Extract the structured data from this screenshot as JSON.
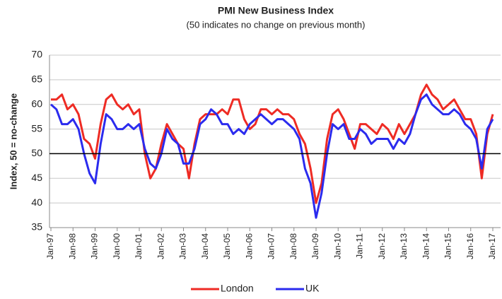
{
  "chart_data": {
    "type": "line",
    "title": "PMI New Business Index",
    "subtitle": "(50 indicates no change on previous month)",
    "y_label": "Index, 50 = no-change",
    "categories": [
      "Jan-97",
      null,
      null,
      null,
      "Jan-98",
      null,
      null,
      null,
      "Jan-99",
      null,
      null,
      null,
      "Jan-00",
      null,
      null,
      null,
      "Jan-01",
      null,
      null,
      null,
      "Jan-02",
      null,
      null,
      null,
      "Jan-03",
      null,
      null,
      null,
      "Jan-04",
      null,
      null,
      null,
      "Jan-05",
      null,
      null,
      null,
      "Jan-06",
      null,
      null,
      null,
      "Jan-07",
      null,
      null,
      null,
      "Jan-08",
      null,
      null,
      null,
      "Jan-09",
      null,
      null,
      null,
      "Jan-10",
      null,
      null,
      null,
      "Jan-11",
      null,
      null,
      null,
      "Jan-12",
      null,
      null,
      null,
      "Jan-13",
      null,
      null,
      null,
      "Jan-14",
      null,
      null,
      null,
      "Jan-15",
      null,
      null,
      null,
      "Jan-16",
      null,
      null,
      null,
      "Jan-17"
    ],
    "series": [
      {
        "name": "London",
        "color": "#ee2b24",
        "values": [
          61,
          61,
          62,
          59,
          60,
          58,
          53,
          52,
          49,
          56,
          61,
          62,
          60,
          59,
          60,
          58,
          59,
          50,
          45,
          47,
          52,
          56,
          54,
          52,
          51,
          45,
          52,
          57,
          58,
          58,
          58,
          59,
          58,
          61,
          61,
          57,
          55,
          56,
          59,
          59,
          58,
          59,
          58,
          58,
          57,
          54,
          52,
          47,
          40,
          44,
          53,
          58,
          59,
          57,
          54,
          51,
          56,
          56,
          55,
          54,
          56,
          55,
          53,
          56,
          54,
          56,
          58,
          62,
          64,
          62,
          61,
          59,
          60,
          61,
          59,
          57,
          57,
          54,
          45,
          54,
          58
        ]
      },
      {
        "name": "UK",
        "color": "#2b2bee",
        "values": [
          60,
          59,
          56,
          56,
          57,
          55,
          50,
          46,
          44,
          52,
          58,
          57,
          55,
          55,
          56,
          55,
          56,
          51,
          48,
          47,
          50,
          55,
          53,
          52,
          48,
          48,
          51,
          56,
          57,
          59,
          58,
          56,
          56,
          54,
          55,
          54,
          56,
          57,
          58,
          57,
          56,
          57,
          57,
          56,
          55,
          53,
          47,
          44,
          37,
          42,
          50,
          56,
          55,
          56,
          53,
          53,
          55,
          54,
          52,
          53,
          53,
          53,
          51,
          53,
          52,
          54,
          58,
          61,
          62,
          60,
          59,
          58,
          58,
          59,
          58,
          56,
          55,
          53,
          47,
          55,
          57
        ]
      }
    ],
    "ylim": [
      35,
      70
    ],
    "yticks": [
      35,
      40,
      45,
      50,
      55,
      60,
      65,
      70
    ],
    "reference_line": 50,
    "grid": true,
    "legend": "bottom"
  }
}
